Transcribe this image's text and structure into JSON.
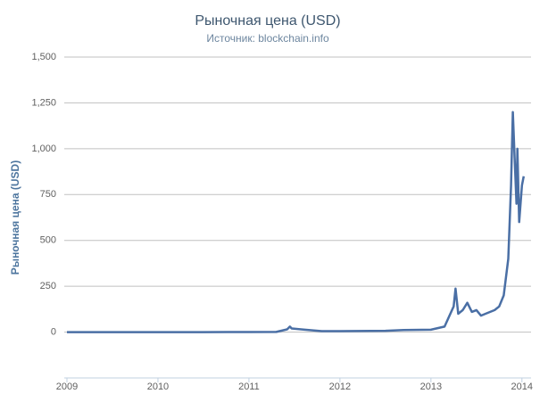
{
  "chart_data": {
    "type": "line",
    "title": "Рыночная цена (USD)",
    "subtitle": "Источник: blockchain.info",
    "y_label": "Рыночная цена (USD)",
    "x": [
      2009.0,
      2010.5,
      2011.0,
      2011.3,
      2011.42,
      2011.45,
      2011.47,
      2011.6,
      2011.8,
      2012.0,
      2012.5,
      2012.7,
      2013.0,
      2013.15,
      2013.25,
      2013.27,
      2013.3,
      2013.35,
      2013.4,
      2013.45,
      2013.5,
      2013.55,
      2013.6,
      2013.7,
      2013.75,
      2013.8,
      2013.85,
      2013.88,
      2013.9,
      2013.92,
      2013.94,
      2013.95,
      2013.97,
      2014.0,
      2014.02
    ],
    "series": [
      {
        "name": "Рыночная цена",
        "color": "#4a6fa5",
        "values": [
          0,
          0.05,
          0.3,
          1,
          15,
          30,
          20,
          14,
          5,
          5,
          7,
          11,
          13,
          30,
          140,
          237,
          100,
          120,
          160,
          110,
          120,
          90,
          100,
          120,
          140,
          200,
          400,
          800,
          1200,
          950,
          700,
          1000,
          600,
          800,
          850
        ]
      }
    ],
    "xlim": [
      2009,
      2014.1
    ],
    "xticks": [
      2009,
      2010,
      2011,
      2012,
      2013,
      2014
    ],
    "ylim": [
      -250,
      1500
    ],
    "yticks": [
      0,
      250,
      500,
      750,
      {
        "value": 1000,
        "label": "1,000"
      },
      {
        "value": 1250,
        "label": "1,250"
      },
      {
        "value": 1500,
        "label": "1,500"
      }
    ],
    "grid": true
  }
}
